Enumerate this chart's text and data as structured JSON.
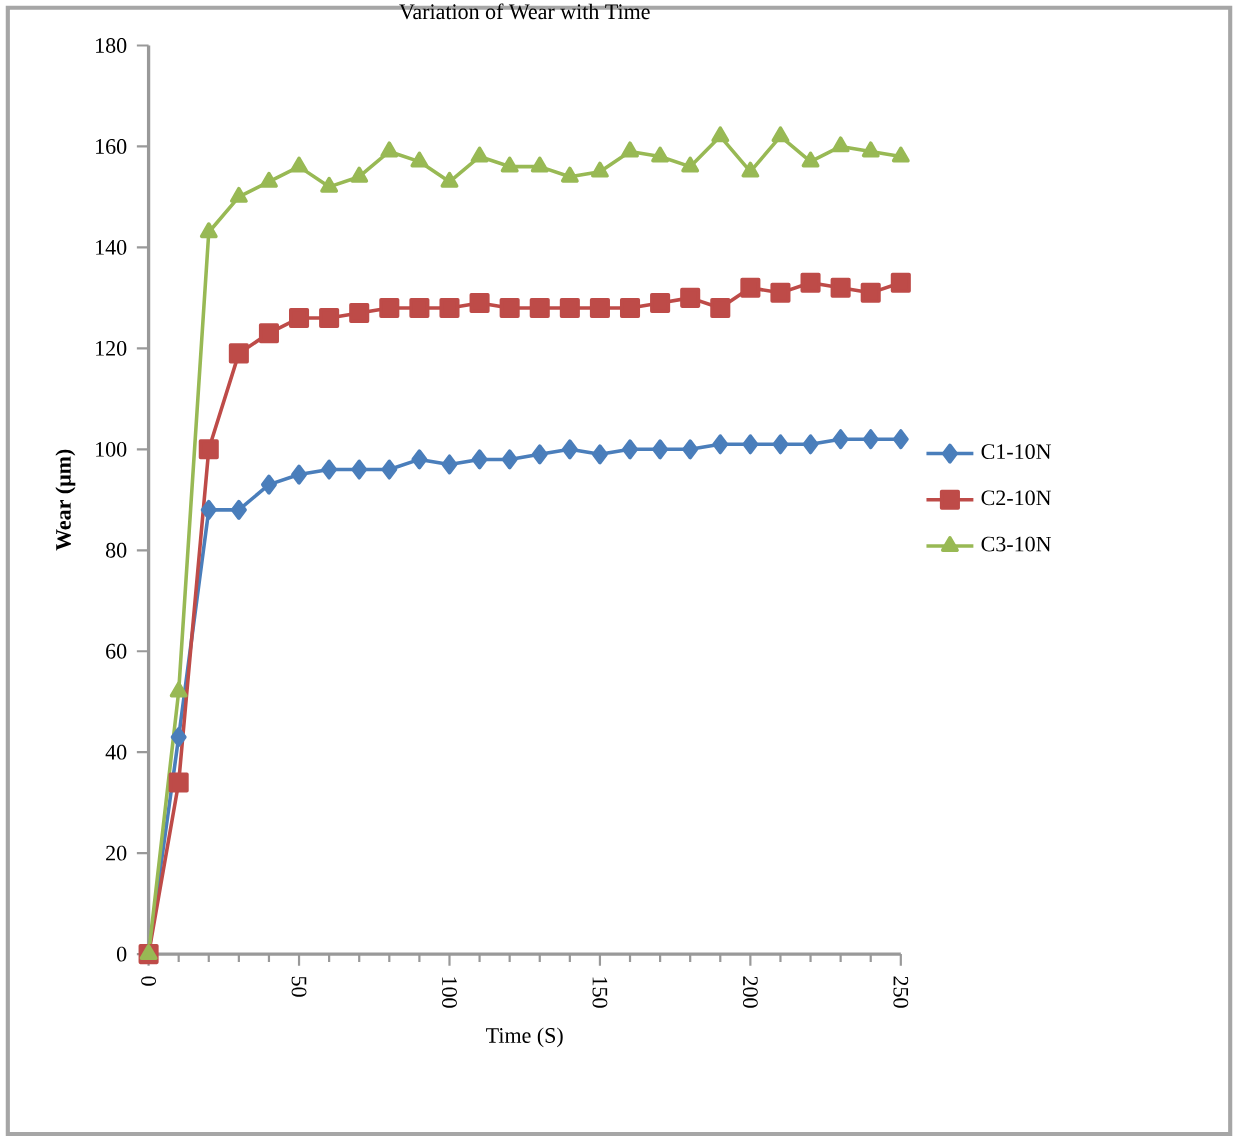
{
  "chart_data": {
    "type": "line",
    "title": "Variation of Wear with Time",
    "xlabel": "Time (S)",
    "ylabel": "Wear (μm)",
    "x": [
      0,
      10,
      20,
      30,
      40,
      50,
      60,
      70,
      80,
      90,
      100,
      110,
      120,
      130,
      140,
      150,
      160,
      170,
      180,
      190,
      200,
      210,
      220,
      230,
      240,
      250
    ],
    "series": [
      {
        "name": "C1-10N",
        "color": "#4a7ebb",
        "marker": "diamond",
        "values": [
          0,
          43,
          88,
          88,
          93,
          95,
          96,
          96,
          96,
          98,
          97,
          98,
          98,
          99,
          100,
          99,
          100,
          100,
          100,
          101,
          101,
          101,
          101,
          102,
          102,
          102
        ]
      },
      {
        "name": "C2-10N",
        "color": "#be4b48",
        "marker": "square",
        "values": [
          0,
          34,
          100,
          119,
          123,
          126,
          126,
          127,
          128,
          128,
          128,
          129,
          128,
          128,
          128,
          128,
          128,
          129,
          130,
          128,
          132,
          131,
          133,
          132,
          131,
          133
        ]
      },
      {
        "name": "C3-10N",
        "color": "#98b954",
        "marker": "triangle",
        "values": [
          0,
          52,
          143,
          150,
          153,
          156,
          152,
          154,
          159,
          157,
          153,
          158,
          156,
          156,
          154,
          155,
          159,
          158,
          156,
          162,
          155,
          162,
          157,
          160,
          159,
          158
        ]
      }
    ],
    "xlim": [
      0,
      250
    ],
    "xticks": [
      0,
      50,
      100,
      150,
      200,
      250
    ],
    "ylim": [
      0,
      180
    ],
    "yticks": [
      0,
      20,
      40,
      60,
      80,
      100,
      120,
      140,
      160,
      180
    ],
    "grid": false,
    "legend": "right",
    "line_style": "solid"
  }
}
